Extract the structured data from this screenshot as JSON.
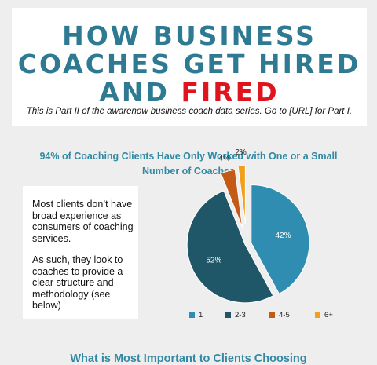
{
  "header": {
    "title_line1": "HOW BUSINESS",
    "title_line2": "COACHES GET HIRED",
    "title_line3_a": "AND ",
    "title_line3_b": "FIRED",
    "subtitle": "This is Part II of the awarenow business coach data series.  Go to [URL] for Part I."
  },
  "colors": {
    "title": "#2e7a92",
    "accent_red": "#e0141c",
    "series_1": "#2e8db0",
    "series_2_3": "#1f5668",
    "series_4_5": "#c45a18",
    "series_6plus": "#f2a01c"
  },
  "note": {
    "paragraph1": "Most clients don’t have broad experience as consumers of coaching services.",
    "paragraph2": "As such, they look to coaches to provide a clear structure and methodology (see below)"
  },
  "chart_data": {
    "type": "pie",
    "title": "94% of Coaching Clients Have Only Worked with One or a Small Number of Coaches",
    "categories": [
      "1",
      "2-3",
      "4-5",
      "6+"
    ],
    "values": [
      42,
      52,
      4,
      2
    ],
    "labels": [
      "42%",
      "52%",
      "4%",
      "2%"
    ],
    "exploded": true,
    "legend_position": "bottom"
  },
  "next_heading": "What is Most Important to Clients Choosing"
}
